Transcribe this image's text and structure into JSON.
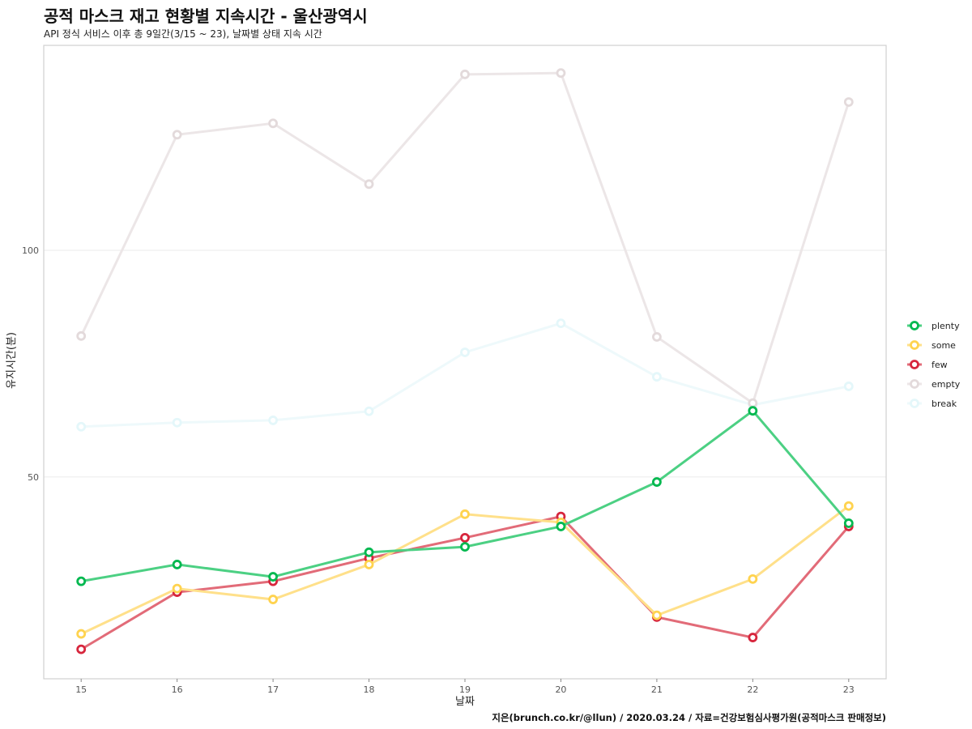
{
  "chart_data": {
    "type": "line",
    "title": "공적 마스크 재고 현황별 지속시간 - 울산광역시",
    "subtitle": "API 정식 서비스 이후 총 9일간(3/15 ~ 23), 날짜별 상태 지속 시간",
    "caption": "지은(brunch.co.kr/@llun) / 2020.03.24 / 자료=건강보험심사평가원(공적마스크 판매정보)",
    "xlabel": "날짜",
    "ylabel": "유지시간(분)",
    "x": [
      15,
      16,
      17,
      18,
      19,
      20,
      21,
      22,
      23
    ],
    "xlim": [
      14.61,
      23.39
    ],
    "ylim": [
      5.5,
      145.2
    ],
    "yticks": [
      50,
      100
    ],
    "grid": true,
    "legend_position": "right",
    "series": [
      {
        "name": "plenty",
        "color": "#00b84f",
        "line_color": "#4cd083",
        "values": [
          27.0,
          30.7,
          28.0,
          33.4,
          34.6,
          39.1,
          48.9,
          64.6,
          39.8
        ]
      },
      {
        "name": "some",
        "color": "#ffd34f",
        "line_color": "#ffe08a",
        "values": [
          15.4,
          25.4,
          23.0,
          30.7,
          41.8,
          40.0,
          19.5,
          27.5,
          43.6
        ]
      },
      {
        "name": "few",
        "color": "#d7263d",
        "line_color": "#e26b78",
        "values": [
          12.0,
          24.6,
          27.0,
          32.1,
          36.6,
          41.3,
          19.1,
          14.6,
          39.1
        ]
      },
      {
        "name": "empty",
        "color": "#e3dadb",
        "line_color": "#ece6e7",
        "values": [
          81.1,
          125.5,
          128.0,
          114.6,
          138.8,
          139.1,
          80.9,
          66.3,
          132.7
        ]
      },
      {
        "name": "break",
        "color": "#e4f7fa",
        "line_color": "#eef9fb",
        "values": [
          61.1,
          62.0,
          62.5,
          64.5,
          77.5,
          83.9,
          72.1,
          65.9,
          70.0
        ]
      }
    ]
  }
}
